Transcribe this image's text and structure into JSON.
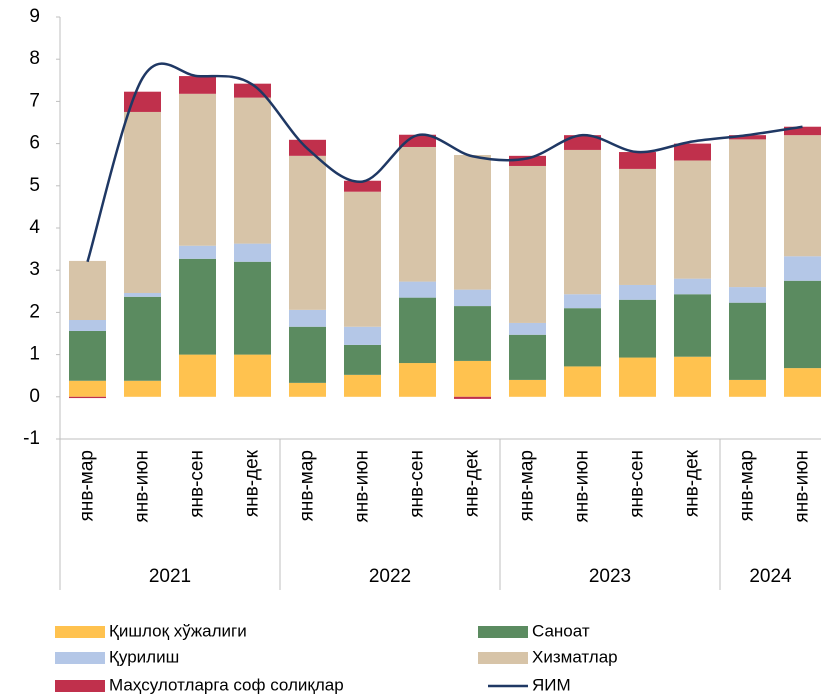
{
  "chart_data": {
    "type": "stacked_bar_line",
    "categories": [
      "янв-мар",
      "янв-июн",
      "янв-сен",
      "янв-дек",
      "янв-мар",
      "янв-июн",
      "янв-сен",
      "янв-дек",
      "янв-мар",
      "янв-июн",
      "янв-сен",
      "янв-дек",
      "янв-мар",
      "янв-июн"
    ],
    "groups": [
      {
        "name": "2021",
        "count": 4
      },
      {
        "name": "2022",
        "count": 4
      },
      {
        "name": "2023",
        "count": 4
      },
      {
        "name": "2024",
        "count": 2
      }
    ],
    "series": [
      {
        "name": "Қишлоқ хўжалиги",
        "color": "#ffc24f",
        "values": [
          0.38,
          0.38,
          1.0,
          1.0,
          0.33,
          0.52,
          0.8,
          0.85,
          0.4,
          0.72,
          0.93,
          0.95,
          0.4,
          0.68
        ]
      },
      {
        "name": "Саноат",
        "color": "#5b8b60",
        "values": [
          1.18,
          1.99,
          2.27,
          2.2,
          1.33,
          0.71,
          1.55,
          1.3,
          1.07,
          1.38,
          1.37,
          1.48,
          1.83,
          2.07
        ]
      },
      {
        "name": "Қурилиш",
        "color": "#b4c7e7",
        "values": [
          0.26,
          0.09,
          0.31,
          0.43,
          0.4,
          0.43,
          0.38,
          0.39,
          0.28,
          0.33,
          0.35,
          0.37,
          0.37,
          0.58
        ]
      },
      {
        "name": "Хизматлар",
        "color": "#d7c4a8",
        "values": [
          1.4,
          4.29,
          3.6,
          3.46,
          3.65,
          3.2,
          3.19,
          3.19,
          3.72,
          3.42,
          2.75,
          2.8,
          3.5,
          2.87
        ]
      },
      {
        "name": "Маҳсулотларга соф солиқлар",
        "color": "#c0304c",
        "values": [
          -0.03,
          0.48,
          0.42,
          0.33,
          0.38,
          0.26,
          0.29,
          -0.05,
          0.24,
          0.35,
          0.4,
          0.4,
          0.1,
          0.2
        ]
      },
      {
        "name": "ЯИМ",
        "color": "#1f3864",
        "kind": "line",
        "values": [
          3.2,
          7.55,
          7.6,
          7.4,
          5.88,
          5.1,
          6.2,
          5.7,
          5.65,
          6.2,
          5.8,
          6.05,
          6.2,
          6.4
        ]
      }
    ],
    "ylim": [
      -1,
      9
    ],
    "yticks": [
      -1,
      0,
      1,
      2,
      3,
      4,
      5,
      6,
      7,
      8,
      9
    ],
    "grid": false
  }
}
